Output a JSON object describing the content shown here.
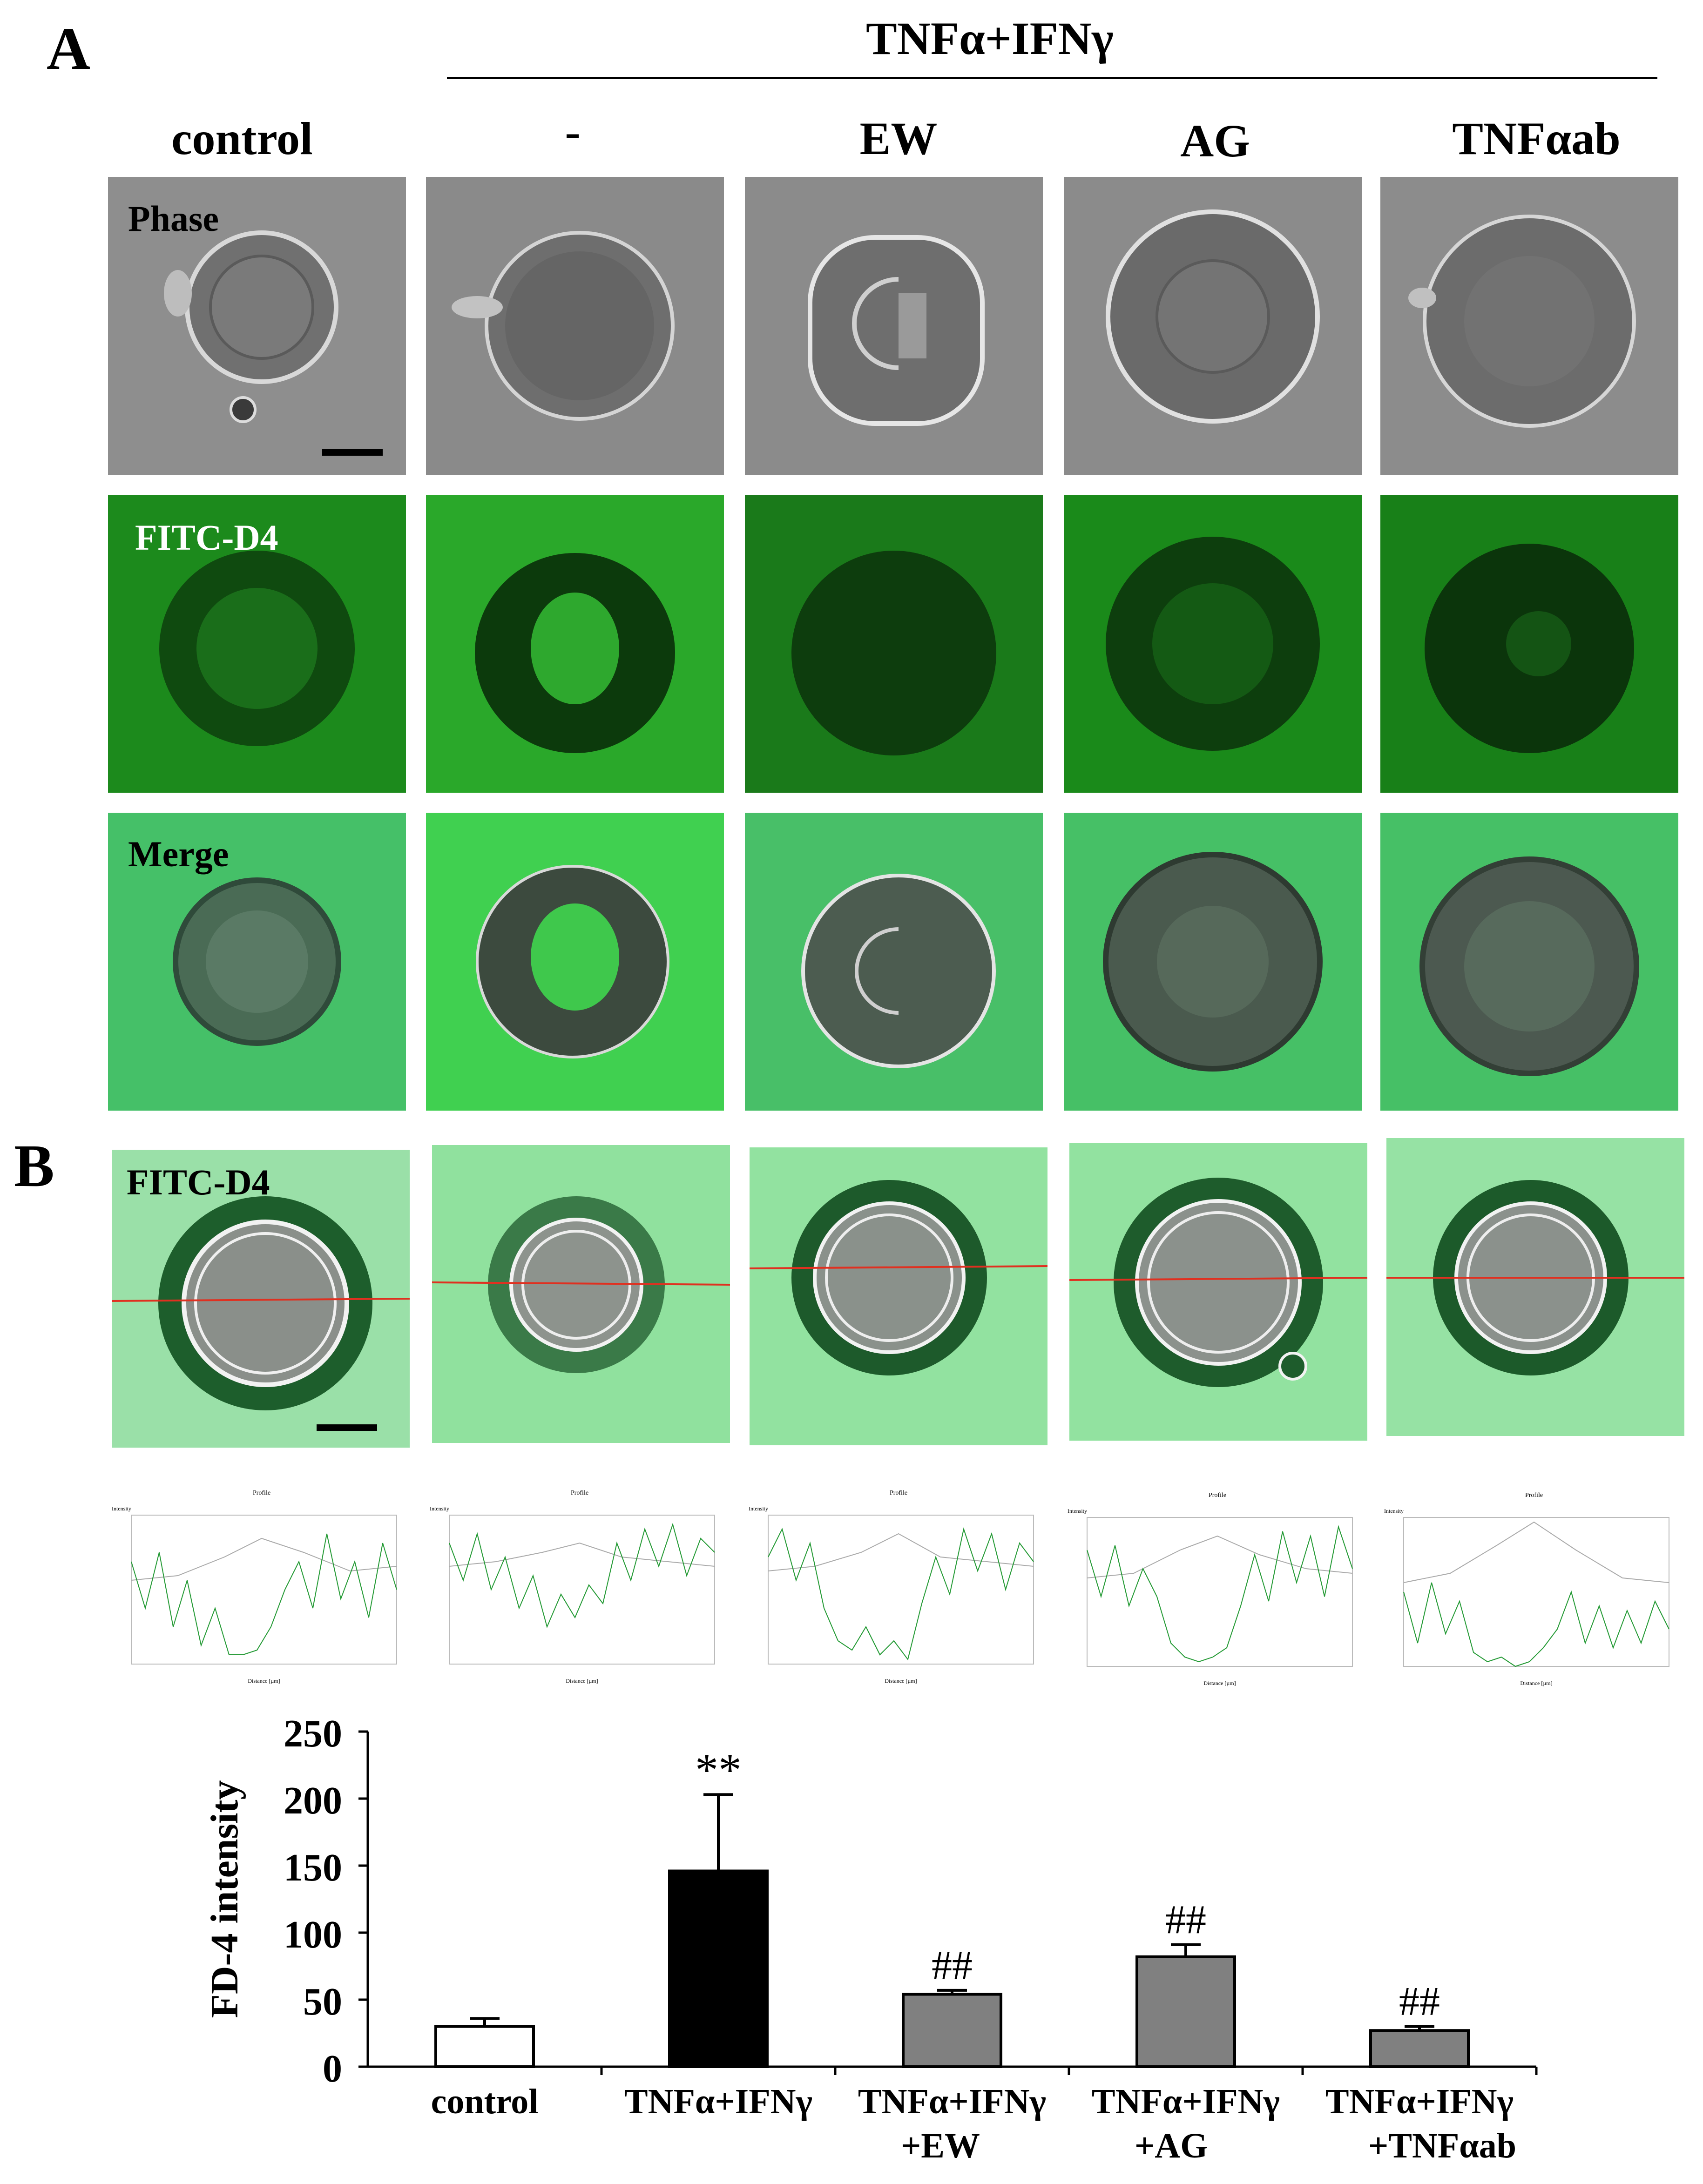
{
  "figure": {
    "panel_a_letter": "A",
    "panel_b_letter": "B",
    "treatment_header": "TNFα+IFNγ",
    "columns": [
      "control",
      "-",
      "EW",
      "AG",
      "TNFαab"
    ],
    "row_labels": {
      "phase": "Phase",
      "fitc": "FITC-D4",
      "merge": "Merge",
      "fitc_b": "FITC-D4"
    },
    "profile_plots": [
      {
        "title": "Profile",
        "ylabel": "Intensity",
        "xlabel": "Distance [µm]"
      },
      {
        "title": "Profile",
        "ylabel": "Intensity",
        "xlabel": "Distance [µm]"
      },
      {
        "title": "Profile",
        "ylabel": "Intensity",
        "xlabel": "Distance [µm]"
      },
      {
        "title": "Profile",
        "ylabel": "Intensity",
        "xlabel": "Distance [µm]"
      },
      {
        "title": "Profile",
        "ylabel": "Intensity",
        "xlabel": "Distance [µm]"
      }
    ]
  },
  "colors": {
    "phase_bg": "#8c8c8c",
    "fitc_green": "#1a8a1a",
    "merge_green": "#3fbf62",
    "b_green": "#8fe3a0",
    "profile_red_line": "#e03020",
    "bar_control": "#ffffff",
    "bar_tnf": "#000000",
    "bar_treated": "#808080"
  },
  "chart_data": {
    "type": "bar",
    "ylabel": "FD-4 intensity",
    "ylim": [
      0,
      250
    ],
    "yticks": [
      "0",
      "50",
      "100",
      "150",
      "200",
      "250"
    ],
    "categories": [
      [
        "control"
      ],
      [
        "TNFα+IFNγ"
      ],
      [
        "TNFα+IFNγ",
        "+EW"
      ],
      [
        "TNFα+IFNγ",
        "+AG"
      ],
      [
        "TNFα+IFNγ",
        "+TNFαab"
      ]
    ],
    "values": [
      30,
      146,
      54,
      82,
      27
    ],
    "errors": [
      6,
      57,
      3,
      9,
      3
    ],
    "annotations": [
      "",
      "**",
      "##",
      "##",
      "##"
    ]
  }
}
